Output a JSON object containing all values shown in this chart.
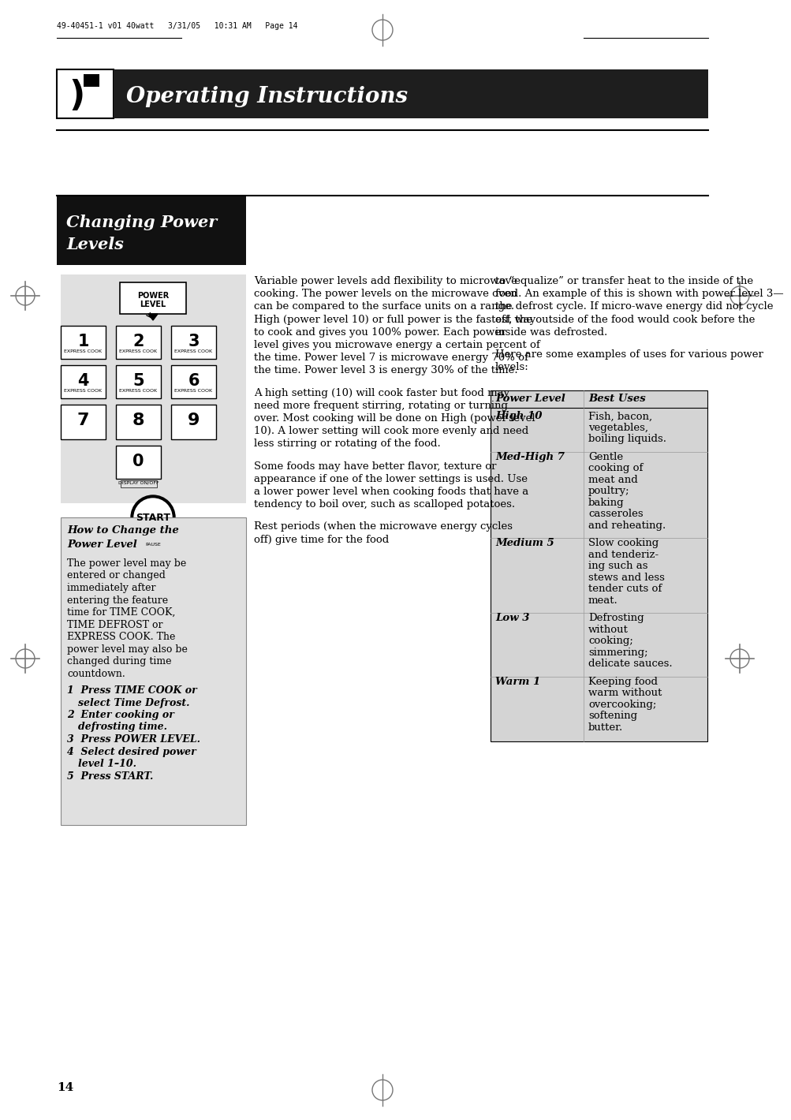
{
  "bg_color": "#ffffff",
  "header_bg": "#1e1e1e",
  "header_text": "Operating Instructions",
  "header_text_color": "#ffffff",
  "top_bar_text": "49-40451-1 v01 40watt   3/31/05   10:31 AM   Page 14",
  "section_title_line1": "Changing Power",
  "section_title_line2": "Levels",
  "section_title_bg": "#111111",
  "section_title_color": "#ffffff",
  "keypad_bg": "#e0e0e0",
  "sidebar_bg": "#e0e0e0",
  "sidebar_title_line1": "How to Change the",
  "sidebar_title_line2": "Power Level",
  "sidebar_body_lines": [
    "The power level may be",
    "entered or changed",
    "immediately after",
    "entering the feature",
    "time for TIME COOK,",
    "TIME DEFROST or",
    "EXPRESS COOK. The",
    "power level may also be",
    "changed during time",
    "countdown."
  ],
  "sidebar_steps": [
    [
      "1",
      "Press TIME COOK or",
      "select Time Defrost."
    ],
    [
      "2",
      "Enter cooking or",
      "defrosting time."
    ],
    [
      "3",
      "Press POWER LEVEL.",
      ""
    ],
    [
      "4",
      "Select desired power",
      "level 1–10."
    ],
    [
      "5",
      "Press START.",
      ""
    ]
  ],
  "col1_paragraphs": [
    "Variable power levels add flexibility to microwave\ncooking. The power levels on the microwave oven\ncan be compared to the surface units on a range.\nHigh (power level 10) or full power is the fastest way\nto cook and gives you 100% power. Each power\nlevel gives you microwave energy a certain percent of\nthe time. Power level 7 is microwave energy 70% of\nthe time. Power level 3 is energy 30% of the time.",
    "A high setting (10) will cook faster but food may\nneed more frequent stirring, rotating or turning\nover. Most cooking will be done on High (power level\n10). A lower setting will cook more evenly and need\nless stirring or rotating of the food.",
    "Some foods may have better flavor, texture or\nappearance if one of the lower settings is used. Use\na lower power level when cooking foods that have a\ntendency to boil over, such as scalloped potatoes.",
    "Rest periods (when the microwave energy cycles\noff) give time for the food"
  ],
  "col2_paragraphs": [
    "to “equalize” or transfer heat to the inside of the\nfood. An example of this is shown with power level 3—\nthe defrost cycle. If micro-wave energy did not cycle\noff, the outside of the food would cook before the\ninside was defrosted.",
    "Here are some examples of uses for various power\nlevels:"
  ],
  "table_bg": "#d4d4d4",
  "table_header": [
    "Power Level",
    "Best Uses"
  ],
  "table_rows": [
    [
      "High 10",
      "Fish, bacon,\nvegetables,\nboiling liquids."
    ],
    [
      "Med-High 7",
      "Gentle\ncooking of\nmeat and\npoultry;\nbaking\ncasseroles\nand reheating."
    ],
    [
      "Medium 5",
      "Slow cooking\nand tenderiz-\ning such as\nstews and less\ntender cuts of\nmeat."
    ],
    [
      "Low 3",
      "Defrosting\nwithout\ncooking;\nsimmering;\ndelicate sauces."
    ],
    [
      "Warm 1",
      "Keeping food\nwarm without\novercooking;\nsoftening\nbutter."
    ]
  ],
  "footer_number": "14"
}
